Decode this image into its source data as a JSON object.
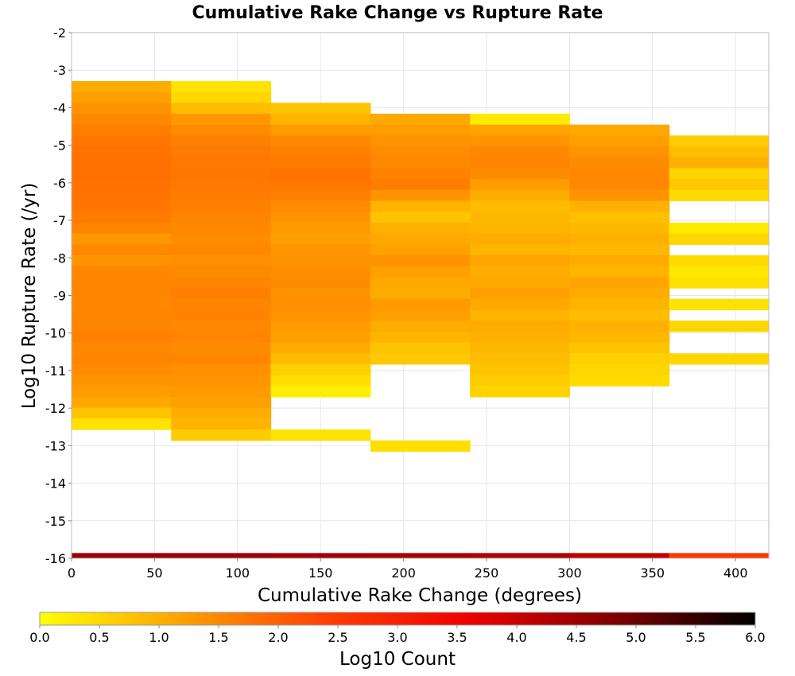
{
  "chart_data": {
    "type": "heatmap",
    "title": "Cumulative Rake Change vs Rupture Rate",
    "xlabel": "Cumulative Rake Change (degrees)",
    "ylabel": "Log10 Rupture Rate (/yr)",
    "xlim": [
      0,
      420
    ],
    "ylim": [
      -16,
      -2
    ],
    "x_ticks": [
      "0",
      "50",
      "100",
      "150",
      "200",
      "250",
      "300",
      "350",
      "400"
    ],
    "y_ticks": [
      "-2",
      "-3",
      "-4",
      "-5",
      "-6",
      "-7",
      "-8",
      "-9",
      "-10",
      "-11",
      "-12",
      "-13",
      "-14",
      "-15",
      "-16"
    ],
    "grid": true,
    "x_bin_width": 60,
    "y_bin_height": 0.29,
    "colorbar": {
      "label": "Log10 Count",
      "range": [
        0,
        6
      ],
      "ticks": [
        "0.0",
        "0.5",
        "1.0",
        "1.5",
        "2.0",
        "2.5",
        "3.0",
        "3.5",
        "4.0",
        "4.5",
        "5.0",
        "5.5",
        "6.0"
      ],
      "colors": [
        "#ffff00",
        "#ffa000",
        "#ff4000",
        "#ee0000",
        "#800000",
        "#000000"
      ]
    },
    "columns": [
      {
        "x0": 0,
        "y_top": -3.29,
        "values": [
          1.05,
          1.2,
          1.35,
          1.5,
          1.62,
          1.72,
          1.78,
          1.8,
          1.8,
          1.78,
          1.75,
          1.72,
          1.65,
          1.55,
          1.3,
          1.5,
          1.35,
          1.5,
          1.55,
          1.55,
          1.5,
          1.55,
          1.55,
          1.6,
          1.5,
          1.55,
          1.45,
          1.35,
          1.25,
          1.1,
          0.75,
          0.35
        ],
        "bottom_row_value": 4.5
      },
      {
        "x0": 60,
        "y_top": -3.29,
        "values": [
          0.35,
          0.5,
          0.85,
          1.3,
          1.45,
          1.6,
          1.68,
          1.7,
          1.72,
          1.7,
          1.65,
          1.6,
          1.55,
          1.5,
          1.45,
          1.5,
          1.42,
          1.48,
          1.55,
          1.6,
          1.55,
          1.58,
          1.5,
          1.55,
          1.45,
          1.5,
          1.4,
          1.35,
          1.28,
          1.2,
          1.05,
          0.95
        ],
        "extra": [
          {
            "y_top": -12.57,
            "value": 0.65
          }
        ],
        "bottom_row_value": 4.45
      },
      {
        "x0": 120,
        "y_top": -3.87,
        "values": [
          0.75,
          0.95,
          1.25,
          1.5,
          1.6,
          1.68,
          1.75,
          1.72,
          1.6,
          1.45,
          1.35,
          1.28,
          1.2,
          1.32,
          1.38,
          1.42,
          1.45,
          1.38,
          1.42,
          1.35,
          1.28,
          1.2,
          1.05,
          0.85,
          0.6,
          0.4,
          0.2
        ],
        "extra": [
          {
            "y_top": -12.57,
            "value": 0.35
          }
        ],
        "bottom_row_value": 4.4
      },
      {
        "x0": 180,
        "y_top": -4.16,
        "values": [
          1.1,
          1.25,
          1.35,
          1.45,
          1.5,
          1.58,
          1.62,
          1.35,
          0.95,
          0.75,
          1.0,
          1.1,
          1.18,
          1.38,
          1.2,
          1.1,
          1.05,
          1.28,
          1.2,
          1.05,
          0.95,
          0.75,
          0.7
        ],
        "extra": [
          {
            "y_top": -12.86,
            "value": 0.4
          }
        ],
        "bottom_row_value": 4.35
      },
      {
        "x0": 240,
        "y_top": -4.16,
        "values": [
          0.25,
          1.15,
          1.35,
          1.5,
          1.55,
          1.45,
          1.25,
          1.05,
          0.85,
          0.9,
          0.95,
          1.05,
          0.95,
          1.15,
          1.05,
          1.1,
          1.2,
          1.1,
          0.95,
          1.05,
          1.0,
          0.9,
          0.85,
          0.75,
          0.65,
          0.55
        ],
        "bottom_row_value": 4.3
      },
      {
        "x0": 300,
        "y_top": -4.45,
        "values": [
          1.1,
          1.2,
          1.35,
          1.45,
          1.5,
          1.5,
          1.35,
          1.0,
          0.8,
          0.9,
          1.0,
          0.9,
          1.05,
          0.95,
          1.15,
          1.05,
          0.95,
          0.85,
          1.0,
          0.9,
          0.75,
          0.6,
          0.5,
          0.45
        ],
        "bottom_row_value": 4.1
      },
      {
        "x0": 360,
        "y_top": -4.74,
        "values": [
          0.65,
          0.85,
          1.0,
          0.55,
          0.7,
          0.45,
          null,
          null,
          0.25,
          0.5,
          null,
          0.45,
          0.3,
          0.4,
          null,
          0.35,
          null,
          0.5,
          null,
          null,
          0.5
        ],
        "bottom_row_value": 2.55
      }
    ]
  }
}
